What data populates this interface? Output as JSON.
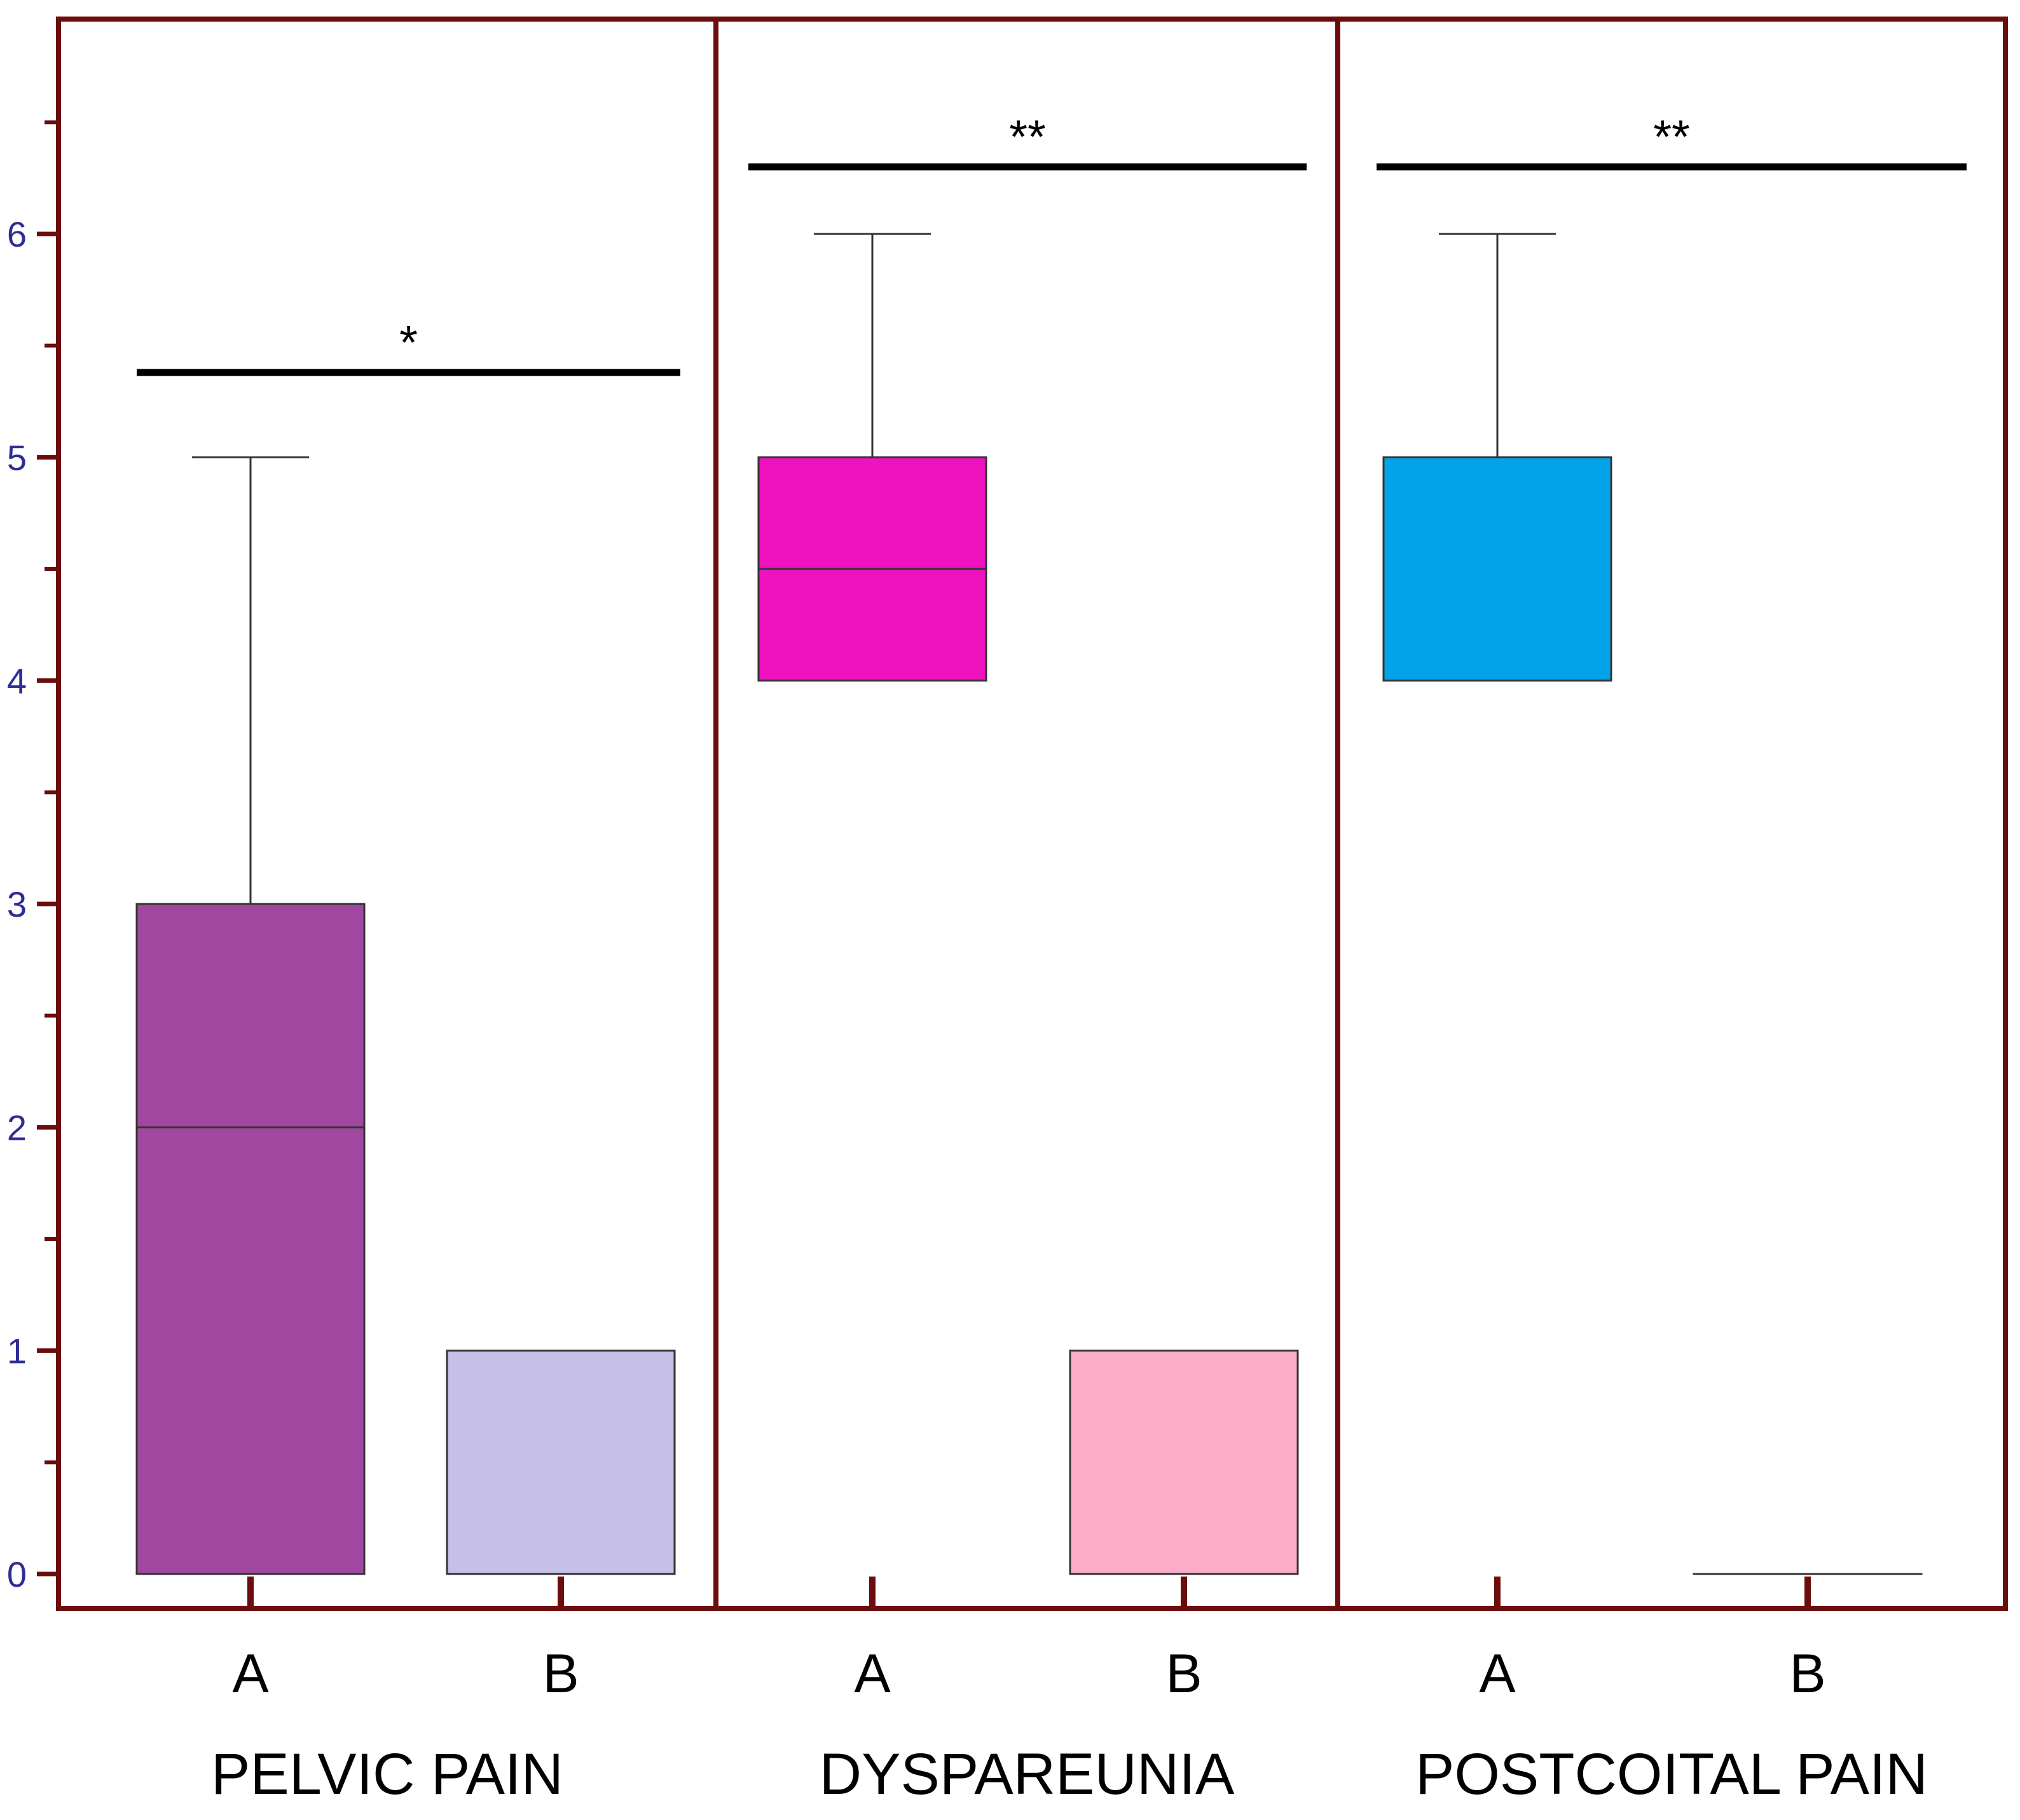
{
  "chart_data": {
    "type": "boxplot",
    "ylim": [
      0,
      6.9
    ],
    "yticks": [
      0,
      1,
      2,
      3,
      4,
      5,
      6
    ],
    "ytick_labels": [
      "0",
      "1",
      "2",
      "3",
      "4",
      "5",
      "6"
    ],
    "grid": false,
    "colors": {
      "frame": "#6b0d0d",
      "axis_text": "#2d2d96",
      "outline": "#333333",
      "sig_bar": "#000000"
    },
    "groups": [
      {
        "label": "PELVIC PAIN",
        "significance": "*",
        "significance_y": 5.38,
        "boxes": [
          {
            "category": "A",
            "min": 0,
            "q1": 0,
            "median": 2,
            "q3": 3,
            "max": 5,
            "color": "#a0489f"
          },
          {
            "category": "B",
            "min": 0,
            "q1": 0,
            "median": 0,
            "q3": 1,
            "max": 1,
            "color": "#c6bfe6"
          }
        ]
      },
      {
        "label": "DYSPAREUNIA",
        "significance": "**",
        "significance_y": 6.3,
        "boxes": [
          {
            "category": "A",
            "min": 4,
            "q1": 4,
            "median": 4.5,
            "q3": 5,
            "max": 6,
            "color": "#ee12bf"
          },
          {
            "category": "B",
            "min": 0,
            "q1": 0,
            "median": 0,
            "q3": 1,
            "max": 1,
            "color": "#fcaec9"
          }
        ]
      },
      {
        "label": "POSTCOITAL PAIN",
        "significance": "**",
        "significance_y": 6.3,
        "boxes": [
          {
            "category": "A",
            "min": 4,
            "q1": 4,
            "median": 5,
            "q3": 5,
            "max": 6,
            "color": "#02a3e8"
          },
          {
            "category": "B",
            "min": 0,
            "q1": 0,
            "median": 0,
            "q3": 0,
            "max": 0,
            "color": "#ffffff"
          }
        ]
      }
    ]
  }
}
